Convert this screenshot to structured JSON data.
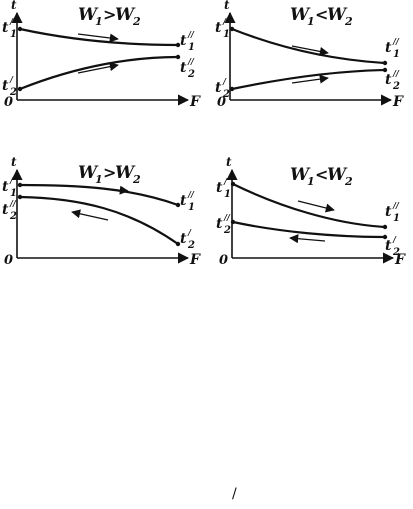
{
  "axis_labels": {
    "vertical": "t",
    "horizontal": "F",
    "origin": "0"
  },
  "panels": [
    {
      "id": "a",
      "title_left": "W",
      "title_left_sub": "1",
      "relation": ">",
      "title_right": "W",
      "title_right_sub": "2",
      "labels": [
        {
          "base": "t",
          "sub": "1",
          "sup": "/"
        },
        {
          "base": "t",
          "sub": "1",
          "sup": "//"
        },
        {
          "base": "t",
          "sub": "2",
          "sup": "/"
        },
        {
          "base": "t",
          "sub": "2",
          "sup": "//"
        }
      ]
    },
    {
      "id": "b",
      "title_left": "W",
      "title_left_sub": "1",
      "relation": "<",
      "title_right": "W",
      "title_right_sub": "2",
      "labels": [
        {
          "base": "t",
          "sub": "1",
          "sup": "/"
        },
        {
          "base": "t",
          "sub": "1",
          "sup": "//"
        },
        {
          "base": "t",
          "sub": "2",
          "sup": "/"
        },
        {
          "base": "t",
          "sub": "2",
          "sup": "//"
        }
      ]
    },
    {
      "id": "c",
      "title_left": "W",
      "title_left_sub": "1",
      "relation": ">",
      "title_right": "W",
      "title_right_sub": "2",
      "labels": [
        {
          "base": "t",
          "sub": "1",
          "sup": "/"
        },
        {
          "base": "t",
          "sub": "1",
          "sup": "//"
        },
        {
          "base": "t",
          "sub": "2",
          "sup": "//"
        },
        {
          "base": "t",
          "sub": "2",
          "sup": "/"
        }
      ]
    },
    {
      "id": "d",
      "title_left": "W",
      "title_left_sub": "1",
      "relation": "<",
      "title_right": "W",
      "title_right_sub": "2",
      "labels": [
        {
          "base": "t",
          "sub": "1",
          "sup": "/"
        },
        {
          "base": "t",
          "sub": "1",
          "sup": "//"
        },
        {
          "base": "t",
          "sub": "2",
          "sup": "//"
        },
        {
          "base": "t",
          "sub": "2",
          "sup": "/"
        }
      ]
    }
  ],
  "footer_mark": "/"
}
